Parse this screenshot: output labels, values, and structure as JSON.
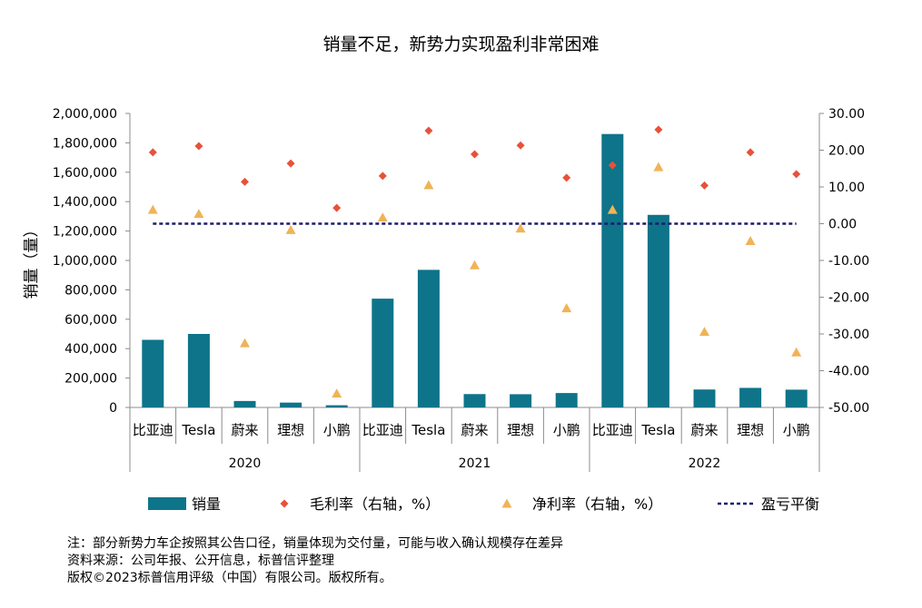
{
  "chart_data": {
    "type": "bar",
    "title": "销量不足，新势力实现盈利非常困难",
    "ylabel": "销量（量）",
    "y2label": "",
    "ylim": [
      0,
      2000000
    ],
    "y2lim": [
      -50,
      30
    ],
    "y_ticks": [
      "0",
      "200,000",
      "400,000",
      "600,000",
      "800,000",
      "1,000,000",
      "1,200,000",
      "1,400,000",
      "1,600,000",
      "1,800,000",
      "2,000,000"
    ],
    "y2_ticks": [
      "-50.00",
      "-40.00",
      "-30.00",
      "-20.00",
      "-10.00",
      "0.00",
      "10.00",
      "20.00",
      "30.00"
    ],
    "categories": [
      "比亚迪",
      "Tesla",
      "蔚来",
      "理想",
      "小鹏",
      "比亚迪",
      "Tesla",
      "蔚来",
      "理想",
      "小鹏",
      "比亚迪",
      "Tesla",
      "蔚来",
      "理想",
      "小鹏"
    ],
    "groups": [
      {
        "label": "2020",
        "count": 5
      },
      {
        "label": "2021",
        "count": 5
      },
      {
        "label": "2022",
        "count": 5
      }
    ],
    "series": [
      {
        "name": "销量",
        "type": "bar",
        "axis": "left",
        "color": "#0E7489",
        "values": [
          460000,
          500000,
          44000,
          33000,
          15000,
          740000,
          936000,
          91000,
          90000,
          98000,
          1860000,
          1310000,
          122000,
          133000,
          121000
        ]
      },
      {
        "name": "毛利率（右轴，%）",
        "type": "marker",
        "marker": "diamond",
        "axis": "right",
        "color": "#E8513A",
        "values": [
          19.4,
          21.1,
          11.4,
          16.4,
          4.3,
          13.0,
          25.3,
          18.9,
          21.3,
          12.5,
          15.9,
          25.6,
          10.4,
          19.4,
          13.5
        ]
      },
      {
        "name": "净利率（右轴，%）",
        "type": "marker",
        "marker": "triangle",
        "axis": "right",
        "color": "#F0B357",
        "values": [
          3.8,
          2.7,
          -32.5,
          -1.7,
          -46.2,
          1.7,
          10.5,
          -11.3,
          -1.3,
          -23.0,
          3.8,
          15.4,
          -29.4,
          -4.7,
          -35.0
        ]
      },
      {
        "name": "盈亏平衡",
        "type": "line",
        "axis": "right",
        "color": "#1B1B6B",
        "dash": true,
        "values": [
          0,
          0,
          0,
          0,
          0,
          0,
          0,
          0,
          0,
          0,
          0,
          0,
          0,
          0,
          0
        ]
      }
    ],
    "legend": "bottom"
  },
  "notes": {
    "note": "注：部分新势力车企按照其公告口径，销量体现为交付量，可能与收入确认规模存在差异",
    "source": "资料来源：公司年报、公开信息，标普信评整理",
    "copyright": "版权©2023标普信用评级（中国）有限公司。版权所有。"
  }
}
